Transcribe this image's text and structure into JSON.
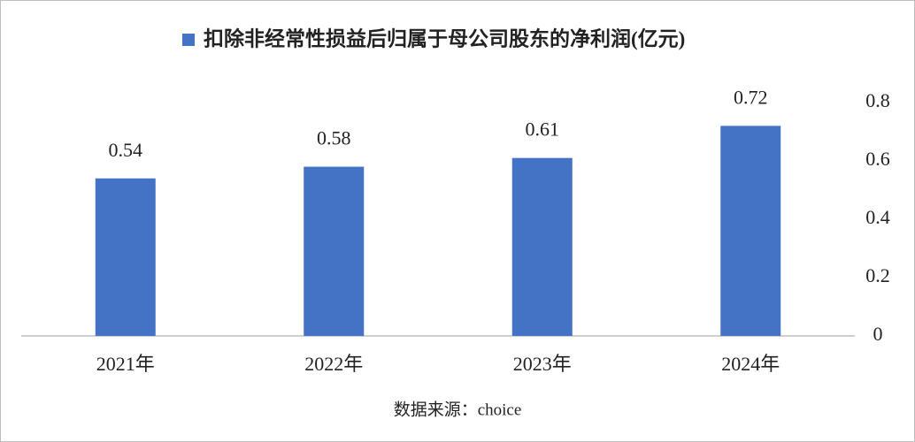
{
  "chart_data": {
    "type": "bar",
    "series": [
      {
        "name": "扣除非经常性损益后归属于母公司股东的净利润(亿元)",
        "color": "#4472c4",
        "values": [
          0.54,
          0.58,
          0.61,
          0.72
        ]
      }
    ],
    "categories": [
      "2021年",
      "2022年",
      "2023年",
      "2024年"
    ],
    "ylim": [
      0,
      0.8
    ],
    "yticks": [
      0,
      0.2,
      0.4,
      0.6,
      0.8
    ],
    "y_axis_position": "right",
    "grid": false,
    "source": "数据来源：choice"
  }
}
